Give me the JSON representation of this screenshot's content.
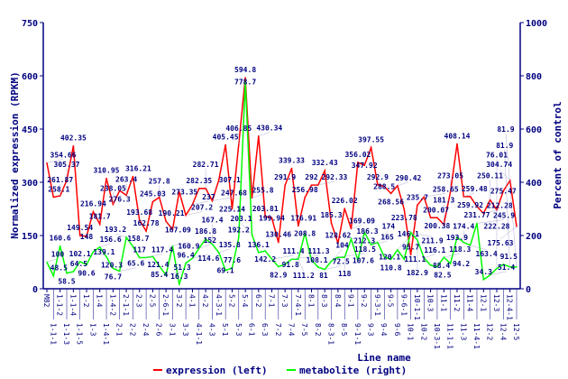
{
  "chart_data": {
    "type": "line",
    "xlabel": "Line name",
    "ylabel": "Normalized expression (RPKM)",
    "y2label": "Percent of control",
    "ylim": [
      0,
      750
    ],
    "y2lim": [
      0,
      1000
    ],
    "yticks": [
      0,
      150,
      300,
      450,
      600,
      750
    ],
    "y2ticks": [
      0,
      200,
      400,
      600,
      800,
      1000
    ],
    "legend_position": "bottom",
    "grid": false,
    "categories": [
      "M82",
      "1-1-1",
      "1-1-2",
      "1-1-3",
      "1-1-4",
      "1-1-5",
      "1-2",
      "1-3",
      "1-4",
      "1-4-1",
      "1-4-2",
      "2-1",
      "2-1-1",
      "2-2",
      "2-3",
      "2-4",
      "2-5",
      "2-6",
      "2-6-1",
      "3-1",
      "3-2",
      "3-3",
      "4-1",
      "4-1-1",
      "4-2",
      "4-3",
      "4-3-1",
      "5-1",
      "5-2",
      "5-3",
      "5-4",
      "6-1",
      "6-2",
      "6-3",
      "7-1",
      "7-2",
      "7-3",
      "7-4",
      "7-4-1",
      "7-5",
      "8-1",
      "8-2",
      "8-3",
      "8-3-1",
      "8-4",
      "8-5",
      "9-1",
      "9-1-1",
      "9-2",
      "9-3",
      "9-3-1",
      "9-4",
      "9-5",
      "9-6",
      "9-6-1",
      "10-1",
      "10-1-1",
      "10-2",
      "10-3",
      "10-3-1",
      "11-1",
      "11-1-1",
      "11-2",
      "11-3",
      "11-4",
      "11-4-1",
      "12-1",
      "12-2",
      "12-3",
      "12-4",
      "12-4-1",
      "12-5"
    ],
    "series": [
      {
        "name": "expression (left)",
        "axis": "left",
        "color": "#ff0000",
        "values": [
          354.66,
          258.1,
          261.87,
          305.37,
          402.35,
          149.54,
          148,
          216.94,
          181.7,
          310.95,
          238.05,
          276.3,
          263.4,
          316.21,
          193.68,
          162.78,
          245.03,
          257.8,
          190.21,
          167.09,
          273.35,
          207.2,
          237,
          282.35,
          282.71,
          247.68,
          307.1,
          405.45,
          225.14,
          406.85,
          594.8,
          255.8,
          430.34,
          203.81,
          199.94,
          130.46,
          291.9,
          339.33,
          176.91,
          256.98,
          292.0,
          292.33,
          332.43,
          185.3,
          128.62,
          226.02,
          169.09,
          356.02,
          347.92,
          397.55,
          292.9,
          288.5,
          268.56,
          290.42,
          223.78,
          95.7,
          235.7,
          258.65,
          200.07,
          200.38,
          181.3,
          273.05,
          408.14,
          259.48,
          259.92,
          231.77,
          212.28,
          250.11,
          222.28,
          275.47,
          304.74,
          175.63
        ]
      },
      {
        "name": "metabolite (right)",
        "axis": "right",
        "color": "#00ff00",
        "values": [
          100,
          48.5,
          160.6,
          58.5,
          64.5,
          102.1,
          90.6,
          139.1,
          156.6,
          120.3,
          76.7,
          65.6,
          193.2,
          158.7,
          117,
          117.4,
          121.4,
          85.4,
          51.3,
          160.9,
          16.3,
          96.4,
          114.6,
          152,
          186.8,
          167.4,
          135.8,
          69.1,
          77.6,
          192.2,
          778.7,
          203.1,
          136.1,
          142.2,
          111.4,
          82.9,
          91.8,
          111.3,
          111.2,
          208.8,
          108.1,
          81,
          72.5,
          104,
          118.5,
          118,
          186.3,
          107.6,
          212.3,
          165,
          174,
          120.1,
          110.8,
          146.1,
          111.1,
          211.9,
          182.9,
          116.1,
          88.4,
          82.5,
          118.3,
          94.2,
          193.9,
          174.4,
          163.4,
          245.9,
          34.3,
          51.4,
          76.01,
          91.5,
          81.9,
          81.9
        ]
      }
    ]
  }
}
